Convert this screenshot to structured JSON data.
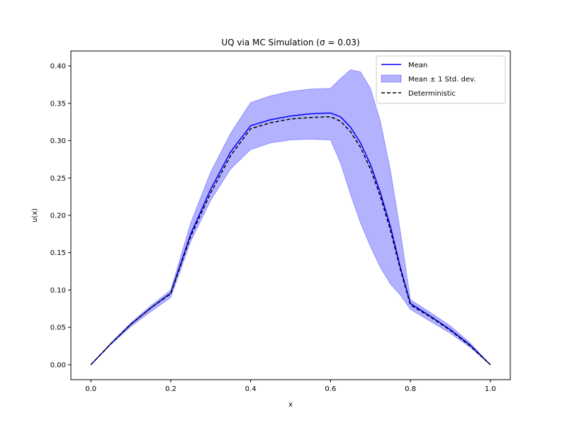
{
  "chart_data": {
    "type": "line",
    "title": "UQ via MC Simulation (σ = 0.03)",
    "xlabel": "x",
    "ylabel": "u(x)",
    "xlim": [
      -0.05,
      1.05
    ],
    "ylim": [
      -0.02,
      0.42
    ],
    "xticks": [
      0.0,
      0.2,
      0.4,
      0.6,
      0.8,
      1.0
    ],
    "xtick_labels": [
      "0.0",
      "0.2",
      "0.4",
      "0.6",
      "0.8",
      "1.0"
    ],
    "yticks": [
      0.0,
      0.05,
      0.1,
      0.15,
      0.2,
      0.25,
      0.3,
      0.35,
      0.4
    ],
    "ytick_labels": [
      "0.00",
      "0.05",
      "0.10",
      "0.15",
      "0.20",
      "0.25",
      "0.30",
      "0.35",
      "0.40"
    ],
    "legend": {
      "placement": "upper-right",
      "entries": [
        {
          "label": "Mean",
          "style": "line",
          "color": "#0000ff"
        },
        {
          "label": "Mean ± 1 Std. dev.",
          "style": "band",
          "color": "#0000ff"
        },
        {
          "label": "Deterministic",
          "style": "dashed",
          "color": "#000000"
        }
      ]
    },
    "x": [
      0.0,
      0.05,
      0.1,
      0.15,
      0.2,
      0.25,
      0.3,
      0.35,
      0.4,
      0.45,
      0.5,
      0.55,
      0.6,
      0.625,
      0.65,
      0.675,
      0.7,
      0.725,
      0.75,
      0.775,
      0.8,
      0.85,
      0.9,
      0.95,
      1.0
    ],
    "series": [
      {
        "name": "Mean",
        "style": "line",
        "color": "#0000ff",
        "values": [
          0.0,
          0.028,
          0.054,
          0.076,
          0.096,
          0.175,
          0.235,
          0.285,
          0.32,
          0.328,
          0.333,
          0.336,
          0.337,
          0.332,
          0.318,
          0.297,
          0.268,
          0.23,
          0.185,
          0.13,
          0.082,
          0.065,
          0.047,
          0.026,
          0.0
        ]
      },
      {
        "name": "Mean ± 1 Std. dev.",
        "style": "band",
        "color": "#0000ff",
        "upper": [
          0.0,
          0.029,
          0.056,
          0.079,
          0.1,
          0.19,
          0.258,
          0.31,
          0.351,
          0.36,
          0.366,
          0.369,
          0.37,
          0.383,
          0.395,
          0.392,
          0.37,
          0.325,
          0.26,
          0.178,
          0.087,
          0.07,
          0.052,
          0.029,
          0.0
        ],
        "lower": [
          0.0,
          0.027,
          0.051,
          0.071,
          0.09,
          0.165,
          0.22,
          0.262,
          0.288,
          0.297,
          0.301,
          0.302,
          0.301,
          0.27,
          0.228,
          0.19,
          0.158,
          0.13,
          0.108,
          0.093,
          0.074,
          0.058,
          0.042,
          0.023,
          0.0
        ]
      },
      {
        "name": "Deterministic",
        "style": "dashed",
        "color": "#000000",
        "values": [
          0.0,
          0.028,
          0.054,
          0.076,
          0.095,
          0.172,
          0.23,
          0.28,
          0.316,
          0.324,
          0.329,
          0.331,
          0.332,
          0.326,
          0.312,
          0.291,
          0.262,
          0.225,
          0.18,
          0.127,
          0.08,
          0.064,
          0.046,
          0.025,
          0.0
        ]
      }
    ]
  }
}
